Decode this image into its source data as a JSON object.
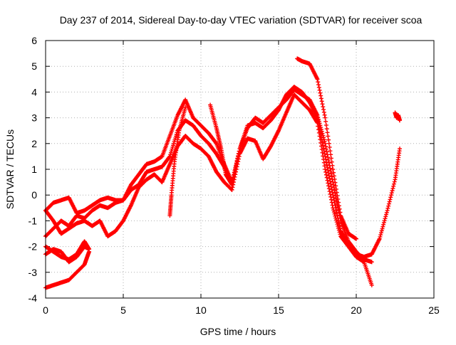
{
  "chart_data": {
    "type": "scatter",
    "title": "Day 237 of 2014, Sidereal Day-to-day VTEC variation (SDTVAR) for receiver scoa",
    "xlabel": "GPS time / hours",
    "ylabel": "SDTVAR / TECUs",
    "xlim": [
      0,
      25
    ],
    "ylim": [
      -4,
      6
    ],
    "x_ticks": [
      0,
      5,
      10,
      15,
      20,
      25
    ],
    "y_ticks": [
      -4,
      -3,
      -2,
      -1,
      0,
      1,
      2,
      3,
      4,
      5,
      6
    ],
    "grid": true,
    "legend": "none",
    "marker": "+",
    "color": "#ff0000",
    "series": [
      {
        "x": [
          0,
          0.5,
          1.0,
          1.5,
          2.0,
          2.5,
          3.0,
          3.5,
          4.0,
          4.5,
          5.0,
          5.5,
          6.0,
          6.5,
          7.0,
          7.5,
          8.0,
          8.5,
          9.0,
          9.5,
          10.0,
          10.5,
          11.0,
          11.5,
          12.0,
          12.5,
          13.0,
          13.5,
          14.0,
          14.5,
          15.0,
          15.5,
          16.0,
          16.5,
          17.0,
          17.5,
          18.0,
          18.5,
          19.0,
          19.5,
          20.0,
          20.5,
          21.0
        ],
        "y": [
          -0.6,
          -0.3,
          -0.2,
          -0.1,
          -0.7,
          -0.6,
          -0.4,
          -0.2,
          -0.1,
          -0.2,
          -0.2,
          0.4,
          0.8,
          1.2,
          1.3,
          1.5,
          2.3,
          3.1,
          3.7,
          3.0,
          2.7,
          2.4,
          2.0,
          1.2,
          0.5,
          1.8,
          2.6,
          3.0,
          2.8,
          3.1,
          3.4,
          3.7,
          4.1,
          3.9,
          3.7,
          3.1,
          2.0,
          0.5,
          -1.0,
          -1.8,
          -2.2,
          -2.5,
          -2.6
        ]
      },
      {
        "x": [
          0,
          0.5,
          1.0,
          1.5,
          2.0,
          2.5,
          3.0,
          3.5,
          4.0,
          4.5,
          5.0,
          5.5,
          6.0,
          6.5,
          7.0,
          7.5,
          8.0,
          8.5,
          9.0,
          9.5,
          10.0,
          10.5,
          11.0,
          11.5,
          12.0,
          12.5,
          13.0,
          13.5,
          14.0,
          14.5,
          15.0,
          15.5,
          16.0,
          16.5,
          17.0,
          17.5,
          18.0,
          18.5,
          19.0,
          19.5,
          20.0,
          20.5,
          21.0,
          21.5,
          22.0,
          22.5,
          22.8
        ],
        "y": [
          -1.6,
          -1.3,
          -1.0,
          -1.2,
          -0.8,
          -0.9,
          -0.6,
          -0.4,
          -0.5,
          -0.3,
          -0.2,
          0.2,
          0.4,
          0.9,
          1.0,
          1.1,
          1.5,
          2.5,
          2.9,
          2.7,
          2.3,
          2.0,
          1.6,
          1.1,
          0.4,
          1.8,
          2.7,
          2.8,
          2.6,
          2.9,
          3.3,
          3.9,
          4.2,
          4.0,
          3.6,
          3.0,
          1.5,
          0.0,
          -1.4,
          -1.9,
          -2.3,
          -2.4,
          -2.3,
          -1.7,
          -0.6,
          0.6,
          1.8
        ]
      },
      {
        "x": [
          0,
          0.5,
          1.0,
          1.5,
          2.0,
          2.5,
          3.0,
          3.5,
          4.0,
          4.5,
          5.0,
          5.5,
          6.0,
          6.5,
          7.0,
          7.5,
          8.0,
          8.5,
          9.0,
          9.5,
          10.0,
          10.5,
          11.0,
          11.5,
          12.0,
          12.5,
          13.0,
          13.5,
          14.0,
          14.5,
          15.0,
          15.5,
          16.0,
          16.5,
          17.0,
          17.5,
          18.0,
          18.5,
          19.0,
          19.5,
          20.0,
          20.5,
          21.0
        ],
        "y": [
          -0.6,
          -1.0,
          -1.5,
          -1.3,
          -1.1,
          -1.0,
          -1.2,
          -1.0,
          -1.6,
          -1.4,
          -1.0,
          -0.4,
          0.3,
          0.6,
          0.8,
          0.5,
          1.2,
          1.9,
          2.3,
          2.0,
          1.8,
          1.5,
          0.9,
          0.5,
          0.2,
          1.6,
          2.2,
          2.1,
          1.4,
          1.9,
          2.5,
          3.2,
          3.9,
          3.6,
          3.3,
          2.8,
          1.0,
          -0.5,
          -1.6,
          -2.0,
          -2.4,
          -2.6,
          -3.5
        ]
      },
      {
        "x": [
          0,
          0.5,
          1.0,
          1.5,
          2.0,
          2.5,
          2.8
        ],
        "y": [
          -2.0,
          -2.2,
          -2.4,
          -2.5,
          -2.3,
          -1.8,
          -2.1
        ]
      },
      {
        "x": [
          0,
          0.5,
          1.0,
          1.5,
          2.0,
          2.5,
          2.8
        ],
        "y": [
          -3.6,
          -3.5,
          -3.4,
          -3.3,
          -3.0,
          -2.7,
          -2.2
        ]
      },
      {
        "x": [
          0,
          0.5,
          1.0,
          1.5,
          2.0,
          2.5,
          2.8
        ],
        "y": [
          -2.3,
          -2.1,
          -2.2,
          -2.6,
          -2.4,
          -2.0,
          -2.1
        ]
      },
      {
        "x": [
          16.2,
          16.5,
          17.0,
          17.5,
          18.0,
          18.5,
          19.0,
          19.5,
          20.0
        ],
        "y": [
          5.3,
          5.2,
          5.1,
          4.5,
          3.0,
          1.0,
          -0.8,
          -1.5,
          -1.7
        ]
      },
      {
        "x": [
          10.6,
          11.0,
          11.3,
          11.6,
          12.0
        ],
        "y": [
          3.5,
          2.6,
          1.8,
          0.8,
          0.4
        ]
      },
      {
        "x": [
          8.0,
          8.1,
          8.3,
          8.6,
          9.0
        ],
        "y": [
          -0.8,
          0.0,
          1.3,
          2.5,
          3.4
        ]
      },
      {
        "x": [
          22.5,
          22.6,
          22.7,
          22.8
        ],
        "y": [
          3.2,
          3.0,
          3.1,
          2.9
        ]
      }
    ]
  }
}
